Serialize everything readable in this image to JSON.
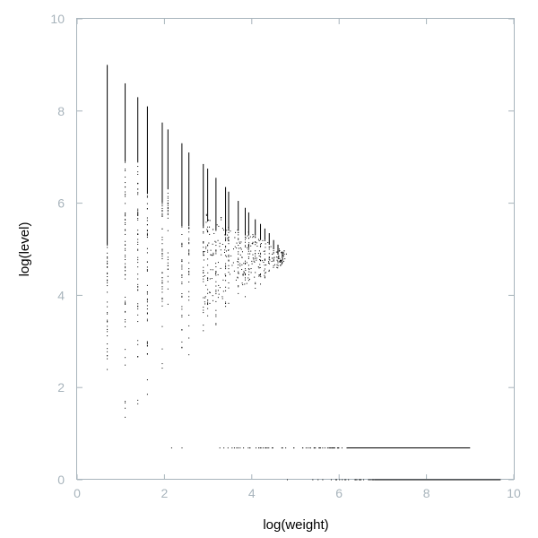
{
  "chart_data": {
    "type": "scatter",
    "title": "",
    "xlabel": "log(weight)",
    "ylabel": "log(level)",
    "xlim": [
      0,
      10
    ],
    "ylim": [
      0,
      10
    ],
    "x_ticks": [
      "0",
      "2",
      "4",
      "6",
      "8",
      "10"
    ],
    "y_ticks": [
      "0",
      "2",
      "4",
      "6",
      "8",
      "10"
    ],
    "grid": false,
    "frame_color": "#a8b4bc",
    "tick_label_color": "#a8b4bc",
    "point_color": "#000000",
    "series": [
      {
        "kind": "vertical_streaks",
        "streaks": [
          {
            "x": 0.69,
            "y_min": 1.4,
            "y_max": 9.0,
            "dense_from": 5.1
          },
          {
            "x": 1.1,
            "y_min": 1.1,
            "y_max": 8.6,
            "dense_from": 6.9
          },
          {
            "x": 1.39,
            "y_min": 1.4,
            "y_max": 8.3,
            "dense_from": 6.9
          },
          {
            "x": 1.61,
            "y_min": 1.6,
            "y_max": 8.1,
            "dense_from": 6.2
          },
          {
            "x": 1.95,
            "y_min": 1.9,
            "y_max": 7.75,
            "dense_from": 6.0
          },
          {
            "x": 2.08,
            "y_min": 3.5,
            "y_max": 7.6,
            "dense_from": 6.3
          },
          {
            "x": 2.4,
            "y_min": 2.4,
            "y_max": 7.3,
            "dense_from": 5.5
          },
          {
            "x": 2.56,
            "y_min": 2.6,
            "y_max": 7.1,
            "dense_from": 5.5
          },
          {
            "x": 2.89,
            "y_min": 2.9,
            "y_max": 6.85,
            "dense_from": 5.5
          },
          {
            "x": 2.99,
            "y_min": 3.3,
            "y_max": 6.75,
            "dense_from": 5.6
          },
          {
            "x": 3.18,
            "y_min": 3.2,
            "y_max": 6.55,
            "dense_from": 5.4
          },
          {
            "x": 3.4,
            "y_min": 3.4,
            "y_max": 6.35,
            "dense_from": 5.3
          },
          {
            "x": 3.47,
            "y_min": 3.6,
            "y_max": 6.25,
            "dense_from": 5.4
          },
          {
            "x": 3.69,
            "y_min": 3.7,
            "y_max": 6.05,
            "dense_from": 5.4
          },
          {
            "x": 3.85,
            "y_min": 3.9,
            "y_max": 5.9,
            "dense_from": 5.3
          },
          {
            "x": 3.93,
            "y_min": 4.0,
            "y_max": 5.8,
            "dense_from": 5.3
          },
          {
            "x": 4.08,
            "y_min": 4.1,
            "y_max": 5.65,
            "dense_from": 5.3
          },
          {
            "x": 4.2,
            "y_min": 4.2,
            "y_max": 5.55,
            "dense_from": 5.2
          },
          {
            "x": 4.3,
            "y_min": 4.3,
            "y_max": 5.45,
            "dense_from": 5.2
          },
          {
            "x": 4.4,
            "y_min": 4.4,
            "y_max": 5.35,
            "dense_from": 5.1
          },
          {
            "x": 4.5,
            "y_min": 4.5,
            "y_max": 5.2,
            "dense_from": 5.0
          },
          {
            "x": 4.6,
            "y_min": 4.6,
            "y_max": 5.1,
            "dense_from": 4.9
          },
          {
            "x": 4.7,
            "y_min": 4.7,
            "y_max": 4.95,
            "dense_from": 4.8
          }
        ]
      },
      {
        "kind": "horizontal_band",
        "y": 0.69,
        "x_min": 1.6,
        "x_max": 9.0,
        "continuous_from": 6.2
      },
      {
        "kind": "horizontal_band",
        "y": 0.0,
        "x_min": 4.5,
        "x_max": 9.7,
        "continuous_from": 6.8
      }
    ]
  }
}
